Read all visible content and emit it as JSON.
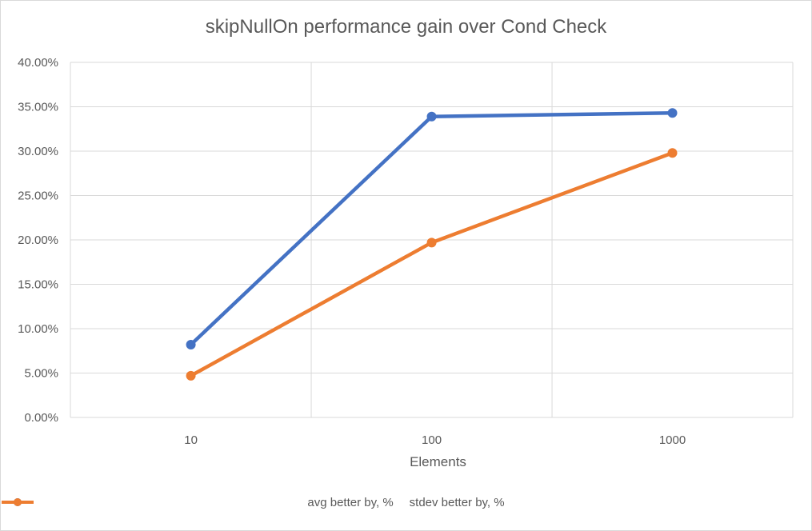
{
  "chart_data": {
    "type": "line",
    "title": "skipNullOn performance gain over Cond Check",
    "xlabel": "Elements",
    "ylabel": "",
    "x_scale": "log",
    "x": [
      10,
      100,
      1000
    ],
    "x_tick_labels": [
      "10",
      "100",
      "1000"
    ],
    "xlim": [
      3.16,
      3162
    ],
    "ylim": [
      0,
      0.4
    ],
    "y_tick_values": [
      0,
      0.05,
      0.1,
      0.15,
      0.2,
      0.25,
      0.3,
      0.35,
      0.4
    ],
    "y_tick_labels": [
      "0.00%",
      "5.00%",
      "10.00%",
      "15.00%",
      "20.00%",
      "25.00%",
      "30.00%",
      "35.00%",
      "40.00%"
    ],
    "grid": true,
    "legend_position": "bottom",
    "series": [
      {
        "name": "avg better by, %",
        "color": "#4472c4",
        "values": [
          0.082,
          0.339,
          0.343
        ]
      },
      {
        "name": "stdev better by, %",
        "color": "#ed7d31",
        "values": [
          0.047,
          0.197,
          0.298
        ]
      }
    ]
  }
}
